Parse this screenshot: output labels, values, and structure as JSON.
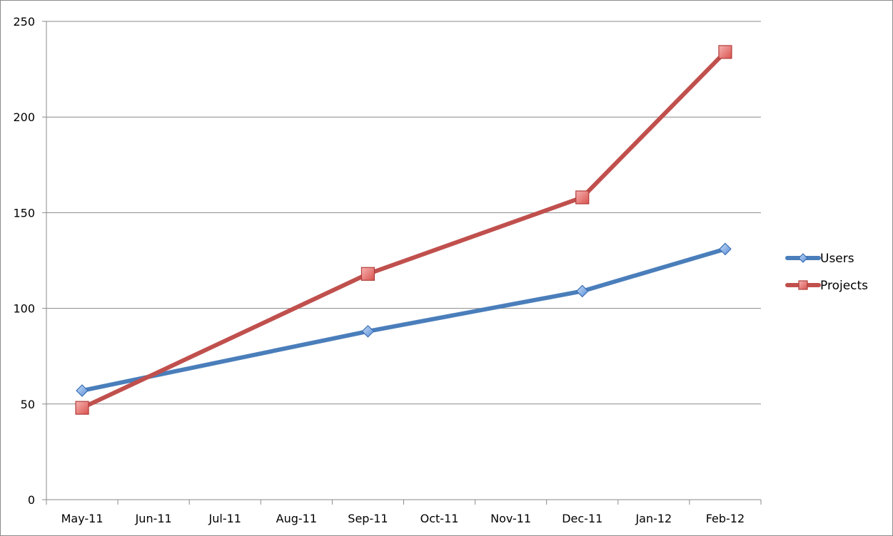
{
  "chart_data": {
    "type": "line",
    "title": "",
    "xlabel": "",
    "ylabel": "",
    "categories": [
      "May-11",
      "Jun-11",
      "Jul-11",
      "Aug-11",
      "Sep-11",
      "Oct-11",
      "Nov-11",
      "Dec-11",
      "Jan-12",
      "Feb-12"
    ],
    "ylim": [
      0,
      250
    ],
    "yticks": [
      0,
      50,
      100,
      150,
      200,
      250
    ],
    "grid": true,
    "legend_position": "right",
    "series": [
      {
        "name": "Users",
        "color": "#4a7ebb",
        "marker": "diamond",
        "points": [
          {
            "x": "May-11",
            "y": 57
          },
          {
            "x": "Sep-11",
            "y": 88
          },
          {
            "x": "Dec-11",
            "y": 109
          },
          {
            "x": "Feb-12",
            "y": 131
          }
        ]
      },
      {
        "name": "Projects",
        "color": "#c0504d",
        "marker": "square",
        "points": [
          {
            "x": "May-11",
            "y": 48
          },
          {
            "x": "Sep-11",
            "y": 118
          },
          {
            "x": "Dec-11",
            "y": 158
          },
          {
            "x": "Feb-12",
            "y": 234
          }
        ]
      }
    ]
  }
}
